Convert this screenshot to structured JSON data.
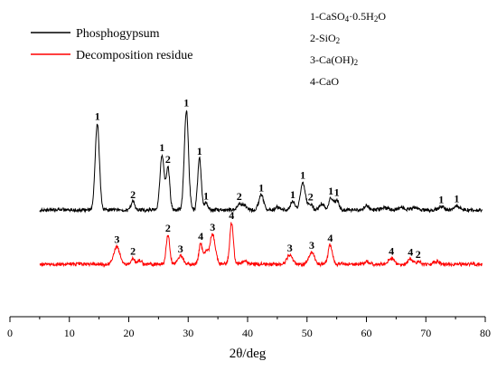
{
  "chart_data": {
    "type": "line",
    "xlabel": "2θ/deg",
    "ylabel": "",
    "xlim": [
      0,
      80
    ],
    "xticks": [
      0,
      10,
      20,
      30,
      40,
      50,
      60,
      70,
      80
    ],
    "yticks_shown": false,
    "grid": false,
    "legend_position": "top-left",
    "series": [
      {
        "name": "Phosphogypsum",
        "color": "#000000",
        "baseline": 1.0,
        "peaks": [
          {
            "x": 14.7,
            "h": 10.4,
            "w": 0.35,
            "label": "1"
          },
          {
            "x": 20.7,
            "h": 1.0,
            "w": 0.3,
            "label": "2"
          },
          {
            "x": 25.6,
            "h": 6.6,
            "w": 0.35,
            "label": "1"
          },
          {
            "x": 26.6,
            "h": 5.1,
            "w": 0.3,
            "label": "2"
          },
          {
            "x": 29.7,
            "h": 12.0,
            "w": 0.35,
            "label": "1"
          },
          {
            "x": 31.9,
            "h": 6.2,
            "w": 0.3,
            "label": "1"
          },
          {
            "x": 33.0,
            "h": 0.8,
            "w": 0.3,
            "label": "1"
          },
          {
            "x": 38.6,
            "h": 0.7,
            "w": 0.4,
            "label": "2"
          },
          {
            "x": 42.3,
            "h": 1.8,
            "w": 0.4,
            "label": "1"
          },
          {
            "x": 47.6,
            "h": 1.0,
            "w": 0.4,
            "label": "1"
          },
          {
            "x": 49.3,
            "h": 3.3,
            "w": 0.4,
            "label": "1"
          },
          {
            "x": 50.6,
            "h": 0.7,
            "w": 0.4,
            "label": "2"
          },
          {
            "x": 54.0,
            "h": 1.4,
            "w": 0.35,
            "label": "1"
          },
          {
            "x": 55.0,
            "h": 1.2,
            "w": 0.35,
            "label": "1"
          },
          {
            "x": 72.6,
            "h": 0.4,
            "w": 0.5,
            "label": "1"
          },
          {
            "x": 75.2,
            "h": 0.5,
            "w": 0.5,
            "label": "1"
          },
          {
            "x": 39.5,
            "h": 0.5,
            "w": 0.4
          },
          {
            "x": 45.0,
            "h": 0.3,
            "w": 0.4
          },
          {
            "x": 52.5,
            "h": 0.7,
            "w": 0.4
          },
          {
            "x": 60.0,
            "h": 0.5,
            "w": 0.4
          },
          {
            "x": 63.0,
            "h": 0.3,
            "w": 0.5
          },
          {
            "x": 66.0,
            "h": 0.3,
            "w": 0.5
          },
          {
            "x": 68.0,
            "h": 0.3,
            "w": 0.5
          }
        ]
      },
      {
        "name": "Decomposition residue",
        "color": "#ff0000",
        "baseline": 0.0,
        "peaks": [
          {
            "x": 18.0,
            "h": 2.1,
            "w": 0.5,
            "label": "3"
          },
          {
            "x": 20.7,
            "h": 0.7,
            "w": 0.3,
            "label": "2"
          },
          {
            "x": 21.8,
            "h": 0.5,
            "w": 0.3
          },
          {
            "x": 26.6,
            "h": 3.5,
            "w": 0.3,
            "label": "2"
          },
          {
            "x": 28.7,
            "h": 1.0,
            "w": 0.45,
            "label": "3"
          },
          {
            "x": 32.1,
            "h": 2.5,
            "w": 0.3,
            "label": "4"
          },
          {
            "x": 33.0,
            "h": 1.5,
            "w": 0.3
          },
          {
            "x": 34.1,
            "h": 3.6,
            "w": 0.45,
            "label": "3"
          },
          {
            "x": 37.3,
            "h": 5.0,
            "w": 0.3,
            "label": "4"
          },
          {
            "x": 39.5,
            "h": 0.4,
            "w": 0.4
          },
          {
            "x": 47.1,
            "h": 1.1,
            "w": 0.5,
            "label": "3"
          },
          {
            "x": 50.8,
            "h": 1.4,
            "w": 0.5,
            "label": "3"
          },
          {
            "x": 53.9,
            "h": 2.3,
            "w": 0.35,
            "label": "4"
          },
          {
            "x": 64.2,
            "h": 0.7,
            "w": 0.5,
            "label": "4"
          },
          {
            "x": 67.4,
            "h": 0.6,
            "w": 0.4,
            "label": "4"
          },
          {
            "x": 68.7,
            "h": 0.3,
            "w": 0.4,
            "label": "2"
          },
          {
            "x": 60.0,
            "h": 0.3,
            "w": 0.5
          },
          {
            "x": 71.8,
            "h": 0.3,
            "w": 0.5
          }
        ]
      }
    ],
    "phase_key": [
      {
        "prefix": "1-CaSO",
        "sub1": "4",
        "mid": "·0.5H",
        "sub2": "2",
        "suffix": "O"
      },
      {
        "prefix": "2-SiO",
        "sub1": "2",
        "mid": "",
        "sub2": "",
        "suffix": ""
      },
      {
        "prefix": "3-Ca(OH)",
        "sub1": "2",
        "mid": "",
        "sub2": "",
        "suffix": ""
      },
      {
        "prefix": "4-CaO",
        "sub1": "",
        "mid": "",
        "sub2": "",
        "suffix": ""
      }
    ]
  }
}
